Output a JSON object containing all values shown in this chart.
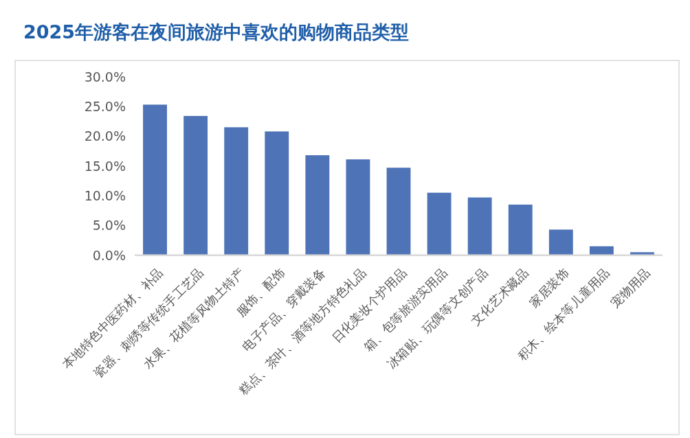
{
  "chart_data": {
    "type": "bar",
    "title": "2025年游客在夜间旅游中喜欢的购物商品类型",
    "categories": [
      "本地特色中医药材、补品",
      "瓷器、刺绣等传统手工艺品",
      "水果、花植等风物土特产",
      "服饰、配饰",
      "电子产品、穿戴装备",
      "糕点、茶叶、酒等地方特色礼品",
      "日化美妆个护用品",
      "箱、包等旅游实用品",
      "冰箱贴、玩偶等文创产品",
      "文化艺术藏品",
      "家居装饰",
      "积木、绘本等儿童用品",
      "宠物用品"
    ],
    "values": [
      25.3,
      23.4,
      21.5,
      20.8,
      16.8,
      16.1,
      14.7,
      10.5,
      9.7,
      8.5,
      4.3,
      1.5,
      0.5
    ],
    "color": "#4e73b6",
    "ylim": [
      0,
      30
    ],
    "yticks": [
      {
        "value": 0,
        "label": "0.0%"
      },
      {
        "value": 5,
        "label": "5.0%"
      },
      {
        "value": 10,
        "label": "10.0%"
      },
      {
        "value": 15,
        "label": "15.0%"
      },
      {
        "value": 20,
        "label": "20.0%"
      },
      {
        "value": 25,
        "label": "25.0%"
      },
      {
        "value": 30,
        "label": "30.0%"
      }
    ],
    "grid": false
  }
}
